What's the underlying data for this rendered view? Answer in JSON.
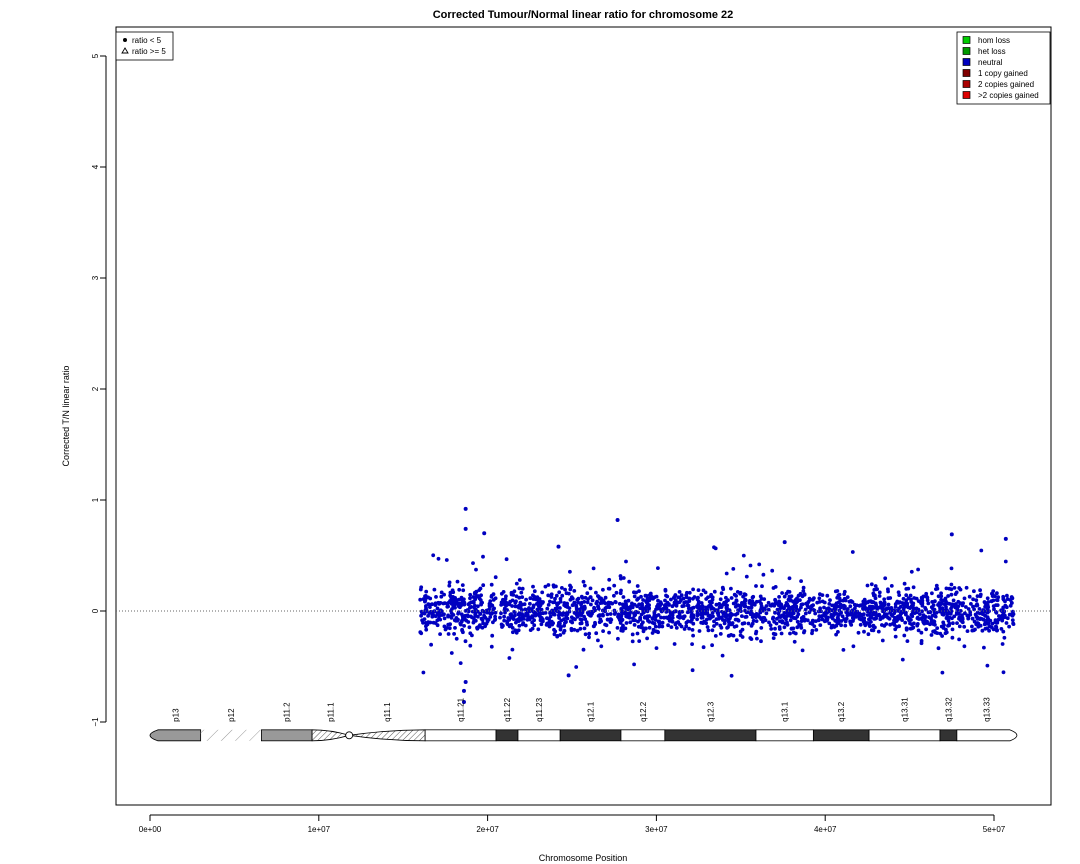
{
  "chart_data": {
    "type": "scatter",
    "title": "Corrected Tumour/Normal linear ratio for chromosome  22",
    "xlabel": "Chromosome Position",
    "ylabel": "Corrected T/N linear ratio",
    "xlim": [
      -2000000,
      53500000
    ],
    "ylim": [
      -1.75,
      5.25
    ],
    "x_ticks": [
      0,
      10000000,
      20000000,
      30000000,
      40000000,
      50000000
    ],
    "x_tick_labels": [
      "0e+00",
      "1e+07",
      "2e+07",
      "3e+07",
      "4e+07",
      "5e+07"
    ],
    "y_ticks": [
      -1,
      0,
      1,
      2,
      3,
      4,
      5
    ],
    "y_tick_labels": [
      "−1",
      "0",
      "1",
      "2",
      "3",
      "4",
      "5"
    ],
    "reference_line": 0,
    "point_color": "#0000c0",
    "data_x_range": [
      16000000,
      51200000
    ],
    "segments": [
      {
        "x": [
          16000000,
          20500000
        ],
        "sd": 0.13
      },
      {
        "x": [
          20700000,
          24200000
        ],
        "sd": 0.12
      },
      {
        "x": [
          24200000,
          28500000
        ],
        "sd": 0.12
      },
      {
        "x": [
          28500000,
          32500000
        ],
        "sd": 0.11
      },
      {
        "x": [
          32500000,
          38000000
        ],
        "sd": 0.12
      },
      {
        "x": [
          38000000,
          44000000
        ],
        "sd": 0.11
      },
      {
        "x": [
          44000000,
          51200000
        ],
        "sd": 0.12
      }
    ],
    "outliers": [
      {
        "x": 18700000,
        "y": 0.92
      },
      {
        "x": 18700000,
        "y": 0.74
      },
      {
        "x": 19800000,
        "y": 0.7
      },
      {
        "x": 27700000,
        "y": 0.82
      },
      {
        "x": 37600000,
        "y": 0.62
      },
      {
        "x": 47500000,
        "y": 0.69
      },
      {
        "x": 50700000,
        "y": 0.65
      },
      {
        "x": 18600000,
        "y": -0.82
      },
      {
        "x": 18600000,
        "y": -0.72
      },
      {
        "x": 18700000,
        "y": -0.64
      },
      {
        "x": 24800000,
        "y": -0.58
      },
      {
        "x": 24200000,
        "y": 0.58
      }
    ],
    "legend_points": {
      "placement": "top-left",
      "entries": [
        {
          "symbol": "dot",
          "label": "ratio < 5"
        },
        {
          "symbol": "triangle",
          "label": "ratio >= 5"
        }
      ]
    },
    "legend_states": {
      "placement": "top-right",
      "entries": [
        {
          "label": "hom loss",
          "color": "#00cc00"
        },
        {
          "label": "het loss",
          "color": "#009900"
        },
        {
          "label": "neutral",
          "color": "#0000c0"
        },
        {
          "label": "1 copy gained",
          "color": "#800000"
        },
        {
          "label": "2 copies gained",
          "color": "#aa0000"
        },
        {
          "label": ">2 copies gained",
          "color": "#dd0000"
        }
      ]
    },
    "ideogram": {
      "y": -1.12,
      "bands": [
        {
          "name": "p13",
          "start": 0,
          "end": 3000000,
          "stain": "gpos50"
        },
        {
          "name": "p12",
          "start": 3000000,
          "end": 6600000,
          "stain": "stalk"
        },
        {
          "name": "p11.2",
          "start": 6600000,
          "end": 9600000,
          "stain": "gpos50"
        },
        {
          "name": "p11.1",
          "start": 9600000,
          "end": 11800000,
          "stain": "acen"
        },
        {
          "name": "q11.1",
          "start": 11800000,
          "end": 16300000,
          "stain": "acen"
        },
        {
          "name": "q11.21",
          "start": 16300000,
          "end": 20500000,
          "stain": "gneg"
        },
        {
          "name": "q11.22",
          "start": 20500000,
          "end": 21800000,
          "stain": "gpos75"
        },
        {
          "name": "q11.23",
          "start": 21800000,
          "end": 24300000,
          "stain": "gneg"
        },
        {
          "name": "q12.1",
          "start": 24300000,
          "end": 27900000,
          "stain": "gpos75"
        },
        {
          "name": "q12.2",
          "start": 27900000,
          "end": 30500000,
          "stain": "gneg"
        },
        {
          "name": "q12.3",
          "start": 30500000,
          "end": 35900000,
          "stain": "gpos75"
        },
        {
          "name": "q13.1",
          "start": 35900000,
          "end": 39300000,
          "stain": "gneg"
        },
        {
          "name": "q13.2",
          "start": 39300000,
          "end": 42600000,
          "stain": "gpos75"
        },
        {
          "name": "q13.31",
          "start": 42600000,
          "end": 46800000,
          "stain": "gneg"
        },
        {
          "name": "q13.32",
          "start": 46800000,
          "end": 47800000,
          "stain": "gpos75"
        },
        {
          "name": "q13.33",
          "start": 47800000,
          "end": 51300000,
          "stain": "gneg"
        }
      ],
      "stain_colors": {
        "gpos50": "#999999",
        "gpos75": "#333333",
        "gneg": "#ffffff"
      }
    }
  }
}
